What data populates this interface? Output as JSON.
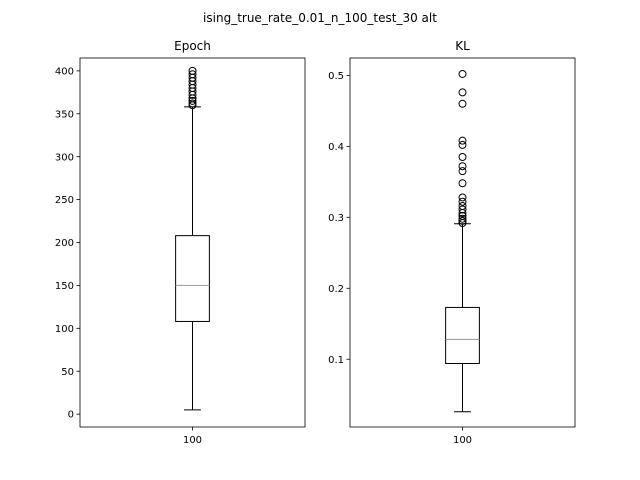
{
  "suptitle": "ising_true_rate_0.01_n_100_test_30 alt",
  "chart_data": [
    {
      "type": "box",
      "title": "Epoch",
      "categories": [
        "100"
      ],
      "ylim": [
        -15,
        415
      ],
      "yticks": [
        0,
        50,
        100,
        150,
        200,
        250,
        300,
        350,
        400
      ],
      "ytick_labels": [
        "0",
        "50",
        "100",
        "150",
        "200",
        "250",
        "300",
        "350",
        "400"
      ],
      "stats": {
        "whislo": 5,
        "q1": 108,
        "median": 150,
        "q3": 208,
        "whishi": 358
      },
      "fliers": [
        360,
        362,
        365,
        368,
        372,
        376,
        380,
        384,
        388,
        392,
        396,
        400
      ],
      "median_color": "#ff7f0e"
    },
    {
      "type": "box",
      "title": "KL",
      "categories": [
        "100"
      ],
      "ylim": [
        0.0045,
        0.5245
      ],
      "yticks": [
        0.1,
        0.2,
        0.3,
        0.4,
        0.5
      ],
      "ytick_labels": [
        "0.1",
        "0.2",
        "0.3",
        "0.4",
        "0.5"
      ],
      "stats": {
        "whislo": 0.026,
        "q1": 0.094,
        "median": 0.128,
        "q3": 0.173,
        "whishi": 0.291
      },
      "fliers": [
        0.292,
        0.295,
        0.298,
        0.302,
        0.306,
        0.311,
        0.316,
        0.322,
        0.328,
        0.348,
        0.365,
        0.372,
        0.385,
        0.402,
        0.408,
        0.46,
        0.476,
        0.502
      ],
      "median_color": "#ff7f0e"
    }
  ]
}
